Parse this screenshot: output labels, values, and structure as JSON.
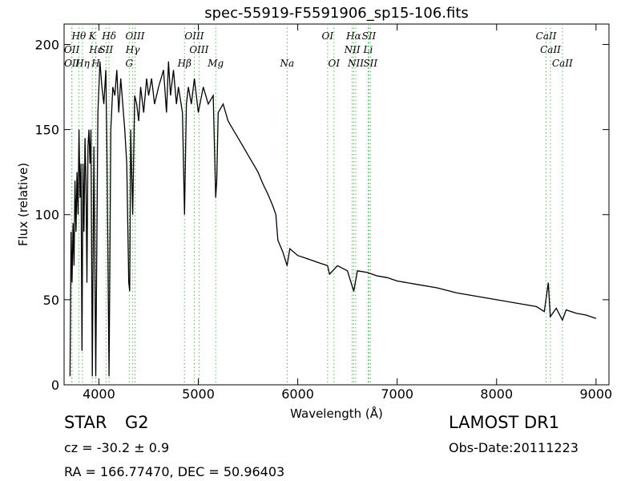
{
  "chart_data": {
    "type": "line",
    "title": "spec-55919-F5591906_sp15-106.fits",
    "xlabel": "Wavelength (Å)",
    "ylabel": "Flux (relative)",
    "xlim": [
      3650,
      9130
    ],
    "ylim": [
      0,
      212
    ],
    "xticks": [
      4000,
      5000,
      6000,
      7000,
      8000,
      9000
    ],
    "yticks": [
      0,
      50,
      100,
      150,
      200
    ],
    "color": "#000000",
    "line_color": "#5cb85c",
    "x": [
      3710,
      3720,
      3730,
      3740,
      3750,
      3760,
      3770,
      3780,
      3790,
      3800,
      3810,
      3820,
      3830,
      3840,
      3850,
      3860,
      3870,
      3880,
      3890,
      3900,
      3910,
      3920,
      3934,
      3950,
      3968,
      3990,
      4010,
      4030,
      4050,
      4070,
      4080,
      4102,
      4120,
      4140,
      4160,
      4180,
      4200,
      4220,
      4240,
      4260,
      4280,
      4300,
      4310,
      4320,
      4340,
      4360,
      4380,
      4400,
      4420,
      4450,
      4480,
      4500,
      4530,
      4560,
      4600,
      4650,
      4680,
      4700,
      4720,
      4750,
      4780,
      4800,
      4840,
      4861,
      4880,
      4900,
      4930,
      4960,
      5000,
      5050,
      5100,
      5150,
      5175,
      5185,
      5200,
      5250,
      5300,
      5350,
      5400,
      5450,
      5500,
      5550,
      5600,
      5650,
      5700,
      5750,
      5780,
      5800,
      5850,
      5893,
      5920,
      6000,
      6100,
      6200,
      6300,
      6320,
      6400,
      6500,
      6563,
      6600,
      6700,
      6800,
      6900,
      7000,
      7200,
      7400,
      7600,
      7800,
      8000,
      8200,
      8400,
      8480,
      8520,
      8540,
      8600,
      8662,
      8700,
      8800,
      8900,
      9000
    ],
    "values": [
      5,
      90,
      60,
      95,
      70,
      120,
      90,
      125,
      100,
      150,
      110,
      130,
      20,
      130,
      90,
      145,
      120,
      60,
      140,
      150,
      130,
      150,
      5,
      140,
      5,
      160,
      190,
      175,
      165,
      185,
      140,
      5,
      150,
      175,
      170,
      185,
      160,
      180,
      165,
      150,
      130,
      60,
      55,
      150,
      100,
      170,
      165,
      155,
      175,
      160,
      180,
      170,
      180,
      165,
      175,
      185,
      160,
      190,
      170,
      185,
      165,
      175,
      160,
      100,
      165,
      175,
      165,
      180,
      160,
      175,
      165,
      170,
      110,
      120,
      160,
      165,
      155,
      150,
      145,
      140,
      135,
      130,
      125,
      118,
      112,
      105,
      100,
      85,
      78,
      70,
      80,
      76,
      74,
      72,
      70,
      65,
      70,
      67,
      55,
      67,
      66,
      64,
      63,
      61,
      59,
      57,
      54,
      52,
      50,
      48,
      46,
      43,
      60,
      40,
      45,
      38,
      44,
      42,
      41,
      39
    ],
    "lines": [
      {
        "label": "Hθ",
        "wavelength": 3798
      },
      {
        "label": "K",
        "wavelength": 3934
      },
      {
        "label": "Hδ",
        "wavelength": 4102
      },
      {
        "label": "OIII",
        "wavelength": 4363
      },
      {
        "label": "OIII",
        "wavelength": 4959
      },
      {
        "label": "OI",
        "wavelength": 6300
      },
      {
        "label": "Hα",
        "wavelength": 6563
      },
      {
        "label": "SII",
        "wavelength": 6716
      },
      {
        "label": "CaII",
        "wavelength": 8498
      },
      {
        "label": "OII",
        "wavelength": 3727
      },
      {
        "label": "Hε",
        "wavelength": 3970
      },
      {
        "label": "SII",
        "wavelength": 4072
      },
      {
        "label": "Hγ",
        "wavelength": 4340
      },
      {
        "label": "OIII",
        "wavelength": 5007
      },
      {
        "label": "NII",
        "wavelength": 6548
      },
      {
        "label": "Li",
        "wavelength": 6708
      },
      {
        "label": "CaII",
        "wavelength": 8542
      },
      {
        "label": "OII",
        "wavelength": 3729
      },
      {
        "label": "Hη",
        "wavelength": 3835
      },
      {
        "label": "H",
        "wavelength": 3968
      },
      {
        "label": "G",
        "wavelength": 4305
      },
      {
        "label": "Hβ",
        "wavelength": 4861
      },
      {
        "label": "Mg",
        "wavelength": 5175
      },
      {
        "label": "Na",
        "wavelength": 5893
      },
      {
        "label": "OI",
        "wavelength": 6364
      },
      {
        "label": "NII",
        "wavelength": 6583
      },
      {
        "label": "SII",
        "wavelength": 6731
      },
      {
        "label": "CaII",
        "wavelength": 8662
      }
    ],
    "annotations": {
      "class": "STAR",
      "subclass": "G2",
      "cz": "cz = -30.2 ± 0.9",
      "radec": "RA = 166.77470, DEC = 50.96403",
      "survey": "LAMOST DR1",
      "obs_date": "Obs-Date:20111223"
    }
  }
}
